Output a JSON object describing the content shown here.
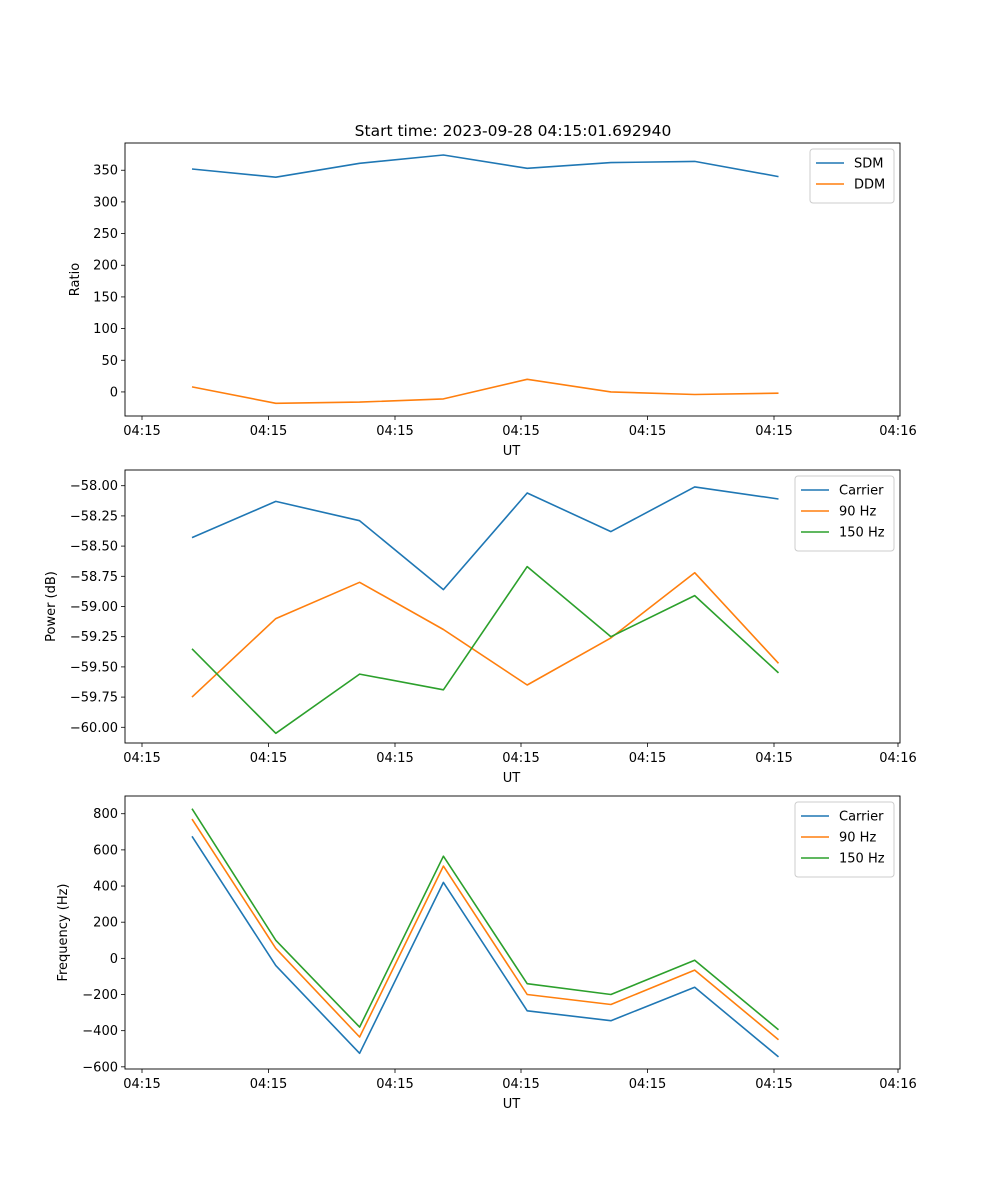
{
  "title": "Start time: 2023-09-28 04:15:01.692940",
  "x_tick_labels": [
    "04:15",
    "04:15",
    "04:15",
    "04:15",
    "04:15",
    "04:15",
    "04:16"
  ],
  "chart_data": [
    {
      "type": "line",
      "xlabel": "UT",
      "ylabel": "Ratio",
      "x": [
        1,
        2,
        3,
        4,
        5,
        6,
        7,
        8
      ],
      "xlim": [
        0.2,
        9.45
      ],
      "ylim": [
        -38,
        393
      ],
      "yticks": [
        0,
        50,
        100,
        150,
        200,
        250,
        300,
        350
      ],
      "ytick_labels": [
        "0",
        "50",
        "100",
        "150",
        "200",
        "250",
        "300",
        "350"
      ],
      "legend_position": "top-right",
      "series": [
        {
          "name": "SDM",
          "color": "#1f77b4",
          "values": [
            352,
            339,
            361,
            374,
            353,
            362,
            364,
            340
          ]
        },
        {
          "name": "DDM",
          "color": "#ff7f0e",
          "values": [
            8,
            -18,
            -16,
            -11,
            20,
            0,
            -4,
            -2
          ]
        }
      ]
    },
    {
      "type": "line",
      "xlabel": "UT",
      "ylabel": "Power (dB)",
      "x": [
        1,
        2,
        3,
        4,
        5,
        6,
        7,
        8
      ],
      "xlim": [
        0.2,
        9.45
      ],
      "ylim": [
        -60.13,
        -57.87
      ],
      "yticks": [
        -60.0,
        -59.75,
        -59.5,
        -59.25,
        -59.0,
        -58.75,
        -58.5,
        -58.25,
        -58.0
      ],
      "ytick_labels": [
        "−60.00",
        "−59.75",
        "−59.50",
        "−59.25",
        "−59.00",
        "−58.75",
        "−58.50",
        "−58.25",
        "−58.00"
      ],
      "legend_position": "top-right",
      "series": [
        {
          "name": "Carrier",
          "color": "#1f77b4",
          "values": [
            -58.43,
            -58.13,
            -58.29,
            -58.86,
            -58.06,
            -58.38,
            -58.01,
            -58.11
          ]
        },
        {
          "name": "90 Hz",
          "color": "#ff7f0e",
          "values": [
            -59.75,
            -59.1,
            -58.8,
            -59.19,
            -59.65,
            -59.26,
            -58.72,
            -59.47
          ]
        },
        {
          "name": "150 Hz",
          "color": "#2ca02c",
          "values": [
            -59.35,
            -60.05,
            -59.56,
            -59.69,
            -58.67,
            -59.25,
            -58.91,
            -59.55
          ]
        }
      ]
    },
    {
      "type": "line",
      "xlabel": "UT",
      "ylabel": "Frequency (Hz)",
      "x": [
        1,
        2,
        3,
        4,
        5,
        6,
        7,
        8
      ],
      "xlim": [
        0.2,
        9.45
      ],
      "ylim": [
        -612,
        898
      ],
      "yticks": [
        -600,
        -400,
        -200,
        0,
        200,
        400,
        600,
        800
      ],
      "ytick_labels": [
        "−600",
        "−400",
        "−200",
        "0",
        "200",
        "400",
        "600",
        "800"
      ],
      "legend_position": "top-right",
      "series": [
        {
          "name": "Carrier",
          "color": "#1f77b4",
          "values": [
            675,
            -40,
            -525,
            420,
            -290,
            -345,
            -160,
            -545
          ]
        },
        {
          "name": "90 Hz",
          "color": "#ff7f0e",
          "values": [
            770,
            55,
            -435,
            510,
            -200,
            -255,
            -65,
            -450
          ]
        },
        {
          "name": "150 Hz",
          "color": "#2ca02c",
          "values": [
            828,
            100,
            -380,
            565,
            -140,
            -200,
            -10,
            -395
          ]
        }
      ]
    }
  ]
}
